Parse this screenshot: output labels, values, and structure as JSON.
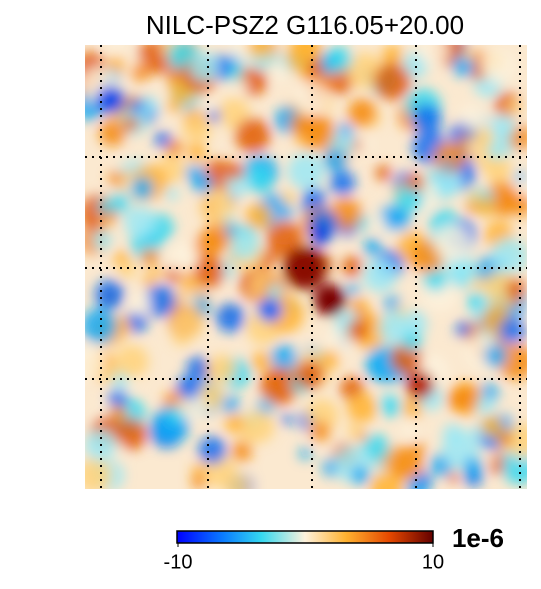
{
  "chart_data": {
    "type": "map",
    "title": "NILC-PSZ2 G116.05+20.00",
    "grid": true,
    "colorbar": {
      "lim": [
        -10,
        10
      ],
      "ticks": [
        -10,
        10
      ],
      "scale_label": "1e-6"
    }
  }
}
